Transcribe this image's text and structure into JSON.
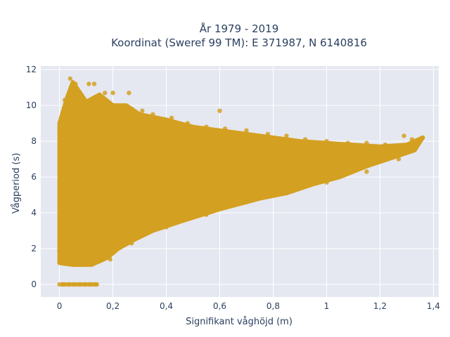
{
  "chart_data": {
    "type": "scatter",
    "title_line1": "År 1979 - 2019",
    "title_line2": "Koordinat (Sweref 99 TM): E 371987, N 6140816",
    "xlabel": "Signifikant våghöjd (m)",
    "ylabel": "Vågperiod (s)",
    "xlim": [
      -0.07,
      1.42
    ],
    "ylim": [
      -0.7,
      12.2
    ],
    "x_ticks": [
      {
        "value": 0,
        "label": "0"
      },
      {
        "value": 0.2,
        "label": "0,2"
      },
      {
        "value": 0.4,
        "label": "0,4"
      },
      {
        "value": 0.6,
        "label": "0,6"
      },
      {
        "value": 0.8,
        "label": "0,8"
      },
      {
        "value": 1.0,
        "label": "1"
      },
      {
        "value": 1.2,
        "label": "1,2"
      },
      {
        "value": 1.4,
        "label": "1,4"
      }
    ],
    "y_ticks": [
      {
        "value": 0,
        "label": "0"
      },
      {
        "value": 2,
        "label": "2"
      },
      {
        "value": 4,
        "label": "4"
      },
      {
        "value": 6,
        "label": "6"
      },
      {
        "value": 8,
        "label": "8"
      },
      {
        "value": 10,
        "label": "10"
      },
      {
        "value": 12,
        "label": "12"
      }
    ],
    "grid": true,
    "marker_color": "#d4a021",
    "background_color": "#e5e8f1",
    "series": [
      {
        "envelope": [
          [
            0.0,
            1.2
          ],
          [
            0.0,
            9.0
          ],
          [
            0.03,
            10.5
          ],
          [
            0.05,
            11.3
          ],
          [
            0.1,
            10.2
          ],
          [
            0.15,
            10.6
          ],
          [
            0.2,
            10.0
          ],
          [
            0.25,
            10.0
          ],
          [
            0.3,
            9.5
          ],
          [
            0.4,
            9.2
          ],
          [
            0.5,
            8.8
          ],
          [
            0.6,
            8.6
          ],
          [
            0.7,
            8.4
          ],
          [
            0.8,
            8.2
          ],
          [
            0.9,
            8.0
          ],
          [
            1.0,
            7.9
          ],
          [
            1.1,
            7.8
          ],
          [
            1.2,
            7.7
          ],
          [
            1.3,
            7.8
          ],
          [
            1.36,
            8.2
          ],
          [
            1.33,
            7.5
          ],
          [
            1.25,
            7.1
          ],
          [
            1.15,
            6.6
          ],
          [
            1.05,
            6.0
          ],
          [
            0.95,
            5.6
          ],
          [
            0.85,
            5.1
          ],
          [
            0.75,
            4.8
          ],
          [
            0.6,
            4.2
          ],
          [
            0.45,
            3.5
          ],
          [
            0.35,
            3.0
          ],
          [
            0.28,
            2.5
          ],
          [
            0.22,
            2.0
          ],
          [
            0.18,
            1.5
          ],
          [
            0.12,
            1.1
          ],
          [
            0.05,
            1.1
          ],
          [
            0.0,
            1.2
          ]
        ],
        "points": [
          [
            0.04,
            11.5
          ],
          [
            0.06,
            11.2
          ],
          [
            0.11,
            11.2
          ],
          [
            0.13,
            11.2
          ],
          [
            0.05,
            10.7
          ],
          [
            0.17,
            10.7
          ],
          [
            0.2,
            10.7
          ],
          [
            0.26,
            10.7
          ],
          [
            0.02,
            10.3
          ],
          [
            0.13,
            10.1
          ],
          [
            0.31,
            9.7
          ],
          [
            0.35,
            9.5
          ],
          [
            0.42,
            9.3
          ],
          [
            0.48,
            9.0
          ],
          [
            0.55,
            8.8
          ],
          [
            0.62,
            8.7
          ],
          [
            0.7,
            8.6
          ],
          [
            0.78,
            8.4
          ],
          [
            0.85,
            8.3
          ],
          [
            0.92,
            8.1
          ],
          [
            1.0,
            8.0
          ],
          [
            1.08,
            7.9
          ],
          [
            1.15,
            7.9
          ],
          [
            1.22,
            7.8
          ],
          [
            1.29,
            8.3
          ],
          [
            1.32,
            8.1
          ],
          [
            1.36,
            8.2
          ],
          [
            1.31,
            7.6
          ],
          [
            0.0,
            1.9
          ],
          [
            0.01,
            1.5
          ],
          [
            0.02,
            1.3
          ],
          [
            0.05,
            1.2
          ],
          [
            0.1,
            1.2
          ],
          [
            0.15,
            1.3
          ],
          [
            0.19,
            1.4
          ],
          [
            0.27,
            2.3
          ],
          [
            0.4,
            3.2
          ],
          [
            0.55,
            3.9
          ],
          [
            0.7,
            4.6
          ],
          [
            0.85,
            5.1
          ],
          [
            1.0,
            5.7
          ],
          [
            1.15,
            6.3
          ],
          [
            1.27,
            7.0
          ],
          [
            0.6,
            9.7
          ],
          [
            0.27,
            9.8
          ],
          [
            0.12,
            9.9
          ],
          [
            0.0,
            0.0
          ],
          [
            0.01,
            0.0
          ],
          [
            0.02,
            0.0
          ],
          [
            0.03,
            0.0
          ],
          [
            0.04,
            0.0
          ],
          [
            0.05,
            0.0
          ],
          [
            0.06,
            0.0
          ],
          [
            0.07,
            0.0
          ],
          [
            0.08,
            0.0
          ],
          [
            0.09,
            0.0
          ],
          [
            0.1,
            0.0
          ],
          [
            0.11,
            0.0
          ],
          [
            0.12,
            0.0
          ],
          [
            0.13,
            0.0
          ],
          [
            0.14,
            0.0
          ],
          [
            0.015,
            0.0
          ],
          [
            0.035,
            0.0
          ],
          [
            0.055,
            0.0
          ],
          [
            0.075,
            0.0
          ],
          [
            0.095,
            0.0
          ],
          [
            0.115,
            0.0
          ],
          [
            0.135,
            0.0
          ]
        ]
      }
    ]
  }
}
